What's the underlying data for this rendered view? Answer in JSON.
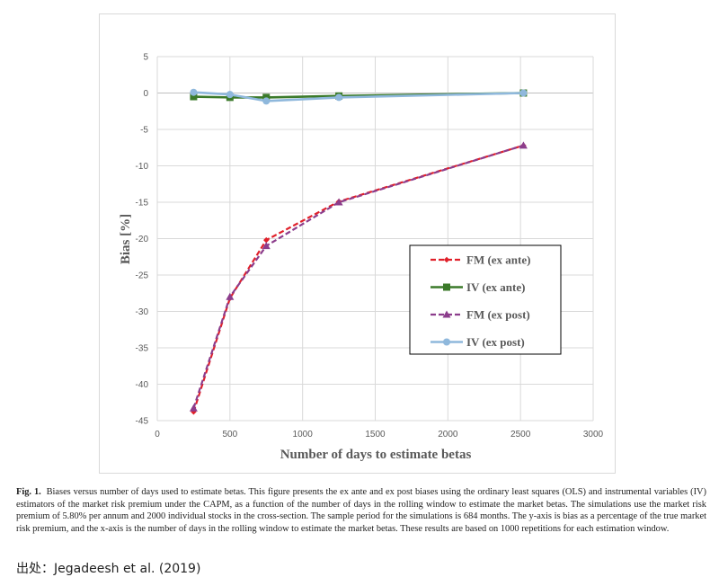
{
  "chart_data": {
    "type": "line",
    "title": "",
    "xlabel": "Number of days to estimate betas",
    "ylabel": "Bias [%]",
    "xlim": [
      0,
      3000
    ],
    "ylim": [
      -45,
      5
    ],
    "x_ticks": [
      "0",
      "500",
      "1000",
      "1500",
      "2000",
      "2500",
      "3000"
    ],
    "y_ticks": [
      "5",
      "0",
      "-5",
      "-10",
      "-15",
      "-20",
      "-25",
      "-30",
      "-35",
      "-40",
      "-45"
    ],
    "grid": true,
    "legend_position": "lower-right inside plot, boxed",
    "series": [
      {
        "name": "FM (ex ante)",
        "color": "#e0202a",
        "dash": "dashed",
        "marker": "diamond",
        "x": [
          250,
          500,
          750,
          1250,
          2520
        ],
        "y": [
          -43.8,
          -28.2,
          -20.2,
          -14.9,
          -7.2
        ]
      },
      {
        "name": "IV (ex ante)",
        "color": "#3b7a2a",
        "dash": "solid",
        "marker": "square",
        "x": [
          250,
          500,
          750,
          1250,
          2520
        ],
        "y": [
          -0.5,
          -0.6,
          -0.6,
          -0.4,
          0.0
        ]
      },
      {
        "name": "FM (ex post)",
        "color": "#8c3d8c",
        "dash": "dashed",
        "marker": "triangle",
        "x": [
          250,
          500,
          750,
          1250,
          2520
        ],
        "y": [
          -43.3,
          -28.0,
          -21.0,
          -15.0,
          -7.2
        ]
      },
      {
        "name": "IV (ex post)",
        "color": "#8fb8dc",
        "dash": "solid",
        "marker": "circle",
        "x": [
          250,
          500,
          750,
          1250,
          2520
        ],
        "y": [
          0.1,
          -0.2,
          -1.1,
          -0.6,
          0.0
        ]
      }
    ]
  },
  "caption": {
    "label": "Fig. 1.",
    "text": "Biases versus number of days used to estimate betas. This figure presents the ex ante and ex post biases using the ordinary least squares (OLS) and instrumental variables (IV) estimators of the market risk premium under the CAPM, as a function of the number of days in the rolling window to estimate the market betas. The simulations use the market risk premium of 5.80% per annum and 2000 individual stocks in the cross-section. The sample period for the simulations is 684 months. The y-axis is bias as a percentage of the true market risk premium, and the x-axis is the number of days in the rolling window to estimate the market betas. These results are based on 1000 repetitions for each estimation window."
  },
  "source": "出处：Jegadeesh et al. (2019)"
}
